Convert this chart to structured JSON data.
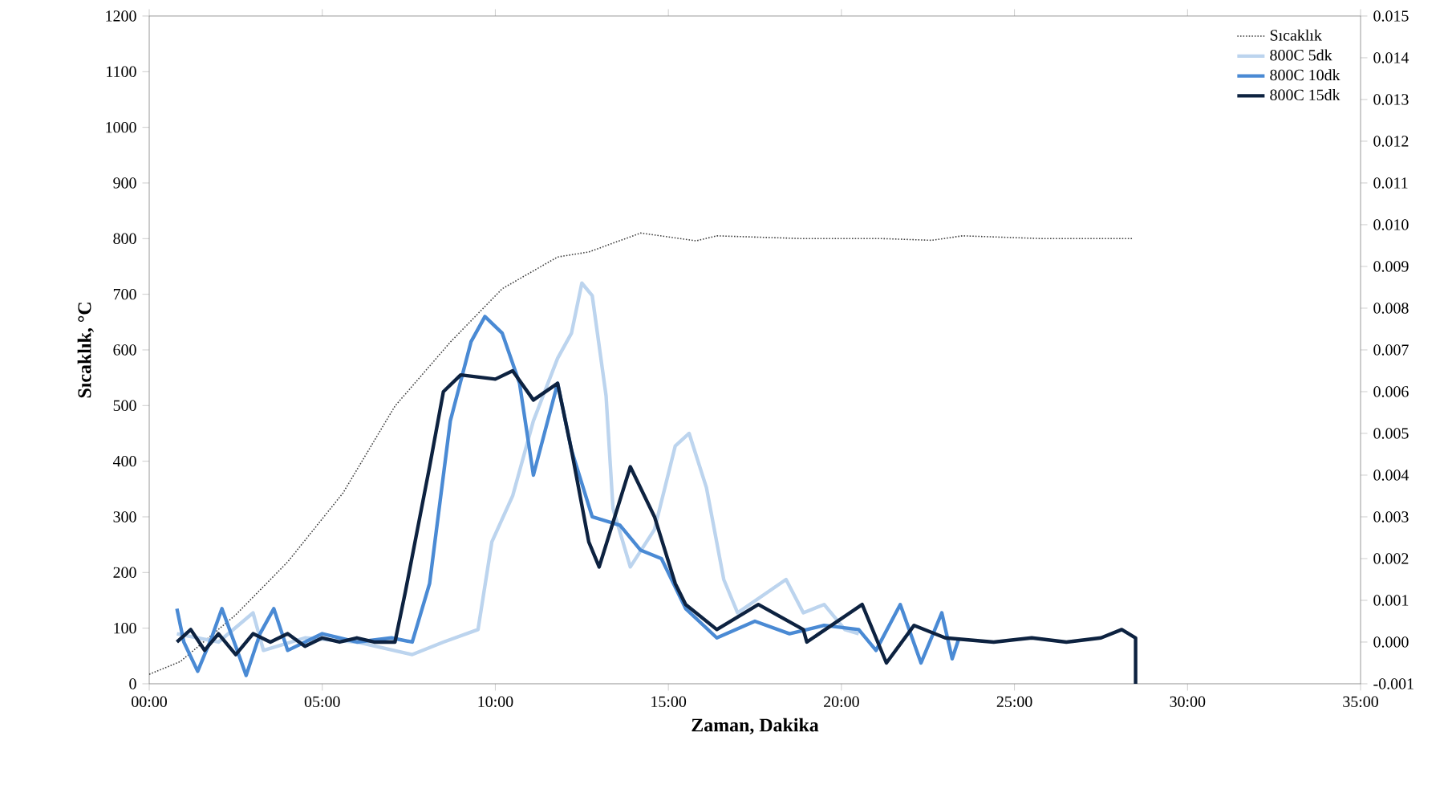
{
  "chart_data": {
    "type": "line",
    "xlabel": "Zaman, Dakika",
    "ylabel": "Sıcaklık, °C",
    "xlim": [
      0,
      35
    ],
    "xticks": [
      {
        "value": 0,
        "label": "00:00"
      },
      {
        "value": 5,
        "label": "05:00"
      },
      {
        "value": 10,
        "label": "10:00"
      },
      {
        "value": 15,
        "label": "15:00"
      },
      {
        "value": 20,
        "label": "20:00"
      },
      {
        "value": 25,
        "label": "25:00"
      },
      {
        "value": 30,
        "label": "30:00"
      },
      {
        "value": 35,
        "label": "35:00"
      }
    ],
    "ylim": [
      0,
      1200
    ],
    "yticks": [
      0,
      100,
      200,
      300,
      400,
      500,
      600,
      700,
      800,
      900,
      1000,
      1100,
      1200
    ],
    "y2lim": [
      -0.001,
      0.015
    ],
    "y2ticks": [
      {
        "value": -0.001,
        "label": "-0.001"
      },
      {
        "value": 0,
        "label": "0.000"
      },
      {
        "value": 0.001,
        "label": "0.001"
      },
      {
        "value": 0.002,
        "label": "0.002"
      },
      {
        "value": 0.003,
        "label": "0.003"
      },
      {
        "value": 0.004,
        "label": "0.004"
      },
      {
        "value": 0.005,
        "label": "0.005"
      },
      {
        "value": 0.006,
        "label": "0.006"
      },
      {
        "value": 0.007,
        "label": "0.007"
      },
      {
        "value": 0.008,
        "label": "0.008"
      },
      {
        "value": 0.009,
        "label": "0.009"
      },
      {
        "value": 0.01,
        "label": "0.010"
      },
      {
        "value": 0.011,
        "label": "0.011"
      },
      {
        "value": 0.012,
        "label": "0.012"
      },
      {
        "value": 0.013,
        "label": "0.013"
      },
      {
        "value": 0.014,
        "label": "0.014"
      },
      {
        "value": 0.015,
        "label": "0.015"
      }
    ],
    "legend": "top right",
    "series": [
      {
        "name": "Sıcaklık",
        "color": "#404040",
        "line_style": "dotted",
        "x": [
          0,
          0.9,
          2.5,
          4.0,
          5.6,
          7.1,
          8.7,
          10.2,
          11.8,
          12.7,
          14.2,
          15.8,
          16.4,
          18.9,
          21.2,
          22.6,
          23.5,
          25.8,
          28.4
        ],
        "values": [
          17,
          40,
          124,
          219,
          343,
          499,
          614,
          710,
          767,
          776,
          810,
          796,
          805,
          800,
          800,
          797,
          805,
          800,
          800
        ]
      },
      {
        "name": "800C 5dk",
        "color": "#bcd4ee",
        "axis": "y2",
        "x": [
          0.8,
          2.0,
          3.0,
          3.3,
          4.5,
          6.0,
          7.6,
          8.5,
          9.5,
          9.9,
          10.5,
          11.1,
          11.8,
          12.2,
          12.5,
          12.8,
          13.2,
          13.4,
          13.9,
          14.6,
          15.2,
          15.6,
          16.1,
          16.6,
          17.0,
          18.4,
          18.9,
          19.5,
          20.1,
          20.5
        ],
        "values": [
          0.0002,
          0.0,
          0.0007,
          -0.0002,
          0.0001,
          0.0,
          -0.0003,
          0.0,
          0.0003,
          0.0024,
          0.0035,
          0.0053,
          0.0068,
          0.0074,
          0.0086,
          0.0083,
          0.0059,
          0.0032,
          0.0018,
          0.0027,
          0.0047,
          0.005,
          0.0037,
          0.0015,
          0.0007,
          0.0015,
          0.0007,
          0.0009,
          0.0003,
          0.0002
        ]
      },
      {
        "name": "800C 10dk",
        "color": "#4a8ad4",
        "axis": "y2",
        "x": [
          0.8,
          1.0,
          1.4,
          1.8,
          2.1,
          2.5,
          2.8,
          3.2,
          3.6,
          4.0,
          5.0,
          6.0,
          7.0,
          7.6,
          8.1,
          8.7,
          9.3,
          9.7,
          10.2,
          10.7,
          11.1,
          11.8,
          12.2,
          12.8,
          13.6,
          14.2,
          14.8,
          15.5,
          16.4,
          17.5,
          18.5,
          19.5,
          20.5,
          21.0,
          21.7,
          22.3,
          22.9,
          23.2,
          23.4
        ],
        "values": [
          0.0008,
          0.0,
          -0.0007,
          0.0001,
          0.0008,
          -0.0001,
          -0.0008,
          0.0002,
          0.0008,
          -0.0002,
          0.0002,
          0.0,
          0.0001,
          0.0,
          0.0014,
          0.0053,
          0.0072,
          0.0078,
          0.0074,
          0.0062,
          0.004,
          0.0062,
          0.0046,
          0.003,
          0.0028,
          0.0022,
          0.002,
          0.0008,
          0.0001,
          0.0005,
          0.0002,
          0.0004,
          0.0003,
          -0.0002,
          0.0009,
          -0.0005,
          0.0007,
          -0.0004,
          0.0001
        ]
      },
      {
        "name": "800C 15dk",
        "color": "#0d2240",
        "axis": "y2",
        "x": [
          0.8,
          1.2,
          1.6,
          2.0,
          2.5,
          3.0,
          3.5,
          4.0,
          4.5,
          5.0,
          5.5,
          6.0,
          6.5,
          7.1,
          7.4,
          8.1,
          8.5,
          9.0,
          10.0,
          10.5,
          11.1,
          11.8,
          12.2,
          12.7,
          13.0,
          13.9,
          14.6,
          15.2,
          15.5,
          16.4,
          17.6,
          18.9,
          19.0,
          20.6,
          21.3,
          22.1,
          23.0,
          24.4,
          25.5,
          26.5,
          27.5,
          28.1,
          28.5,
          28.5
        ],
        "values": [
          0.0,
          0.0003,
          -0.0002,
          0.0002,
          -0.0003,
          0.0002,
          0.0,
          0.0002,
          -0.0001,
          0.0001,
          0.0,
          0.0001,
          0.0,
          0.0,
          0.0012,
          0.0042,
          0.006,
          0.0064,
          0.0063,
          0.0065,
          0.0058,
          0.0062,
          0.0046,
          0.0024,
          0.0018,
          0.0042,
          0.003,
          0.0014,
          0.0009,
          0.0003,
          0.0009,
          0.0003,
          0.0,
          0.0009,
          -0.0005,
          0.0004,
          0.0001,
          0.0,
          0.0001,
          0.0,
          0.0001,
          0.0003,
          0.0001,
          -0.001
        ]
      }
    ]
  }
}
